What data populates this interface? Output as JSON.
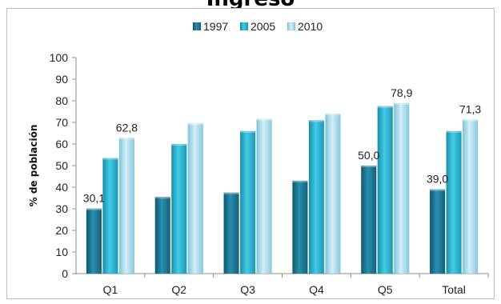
{
  "chart_data": {
    "type": "bar",
    "title": "Ingreso",
    "ylabel": "% de población",
    "xlabel": "",
    "categories": [
      "Q1",
      "Q2",
      "Q3",
      "Q4",
      "Q5",
      "Total"
    ],
    "ylim": [
      0,
      100
    ],
    "yticks": [
      0,
      10,
      20,
      30,
      40,
      50,
      60,
      70,
      80,
      90,
      100
    ],
    "legend_position": "top",
    "grid": false,
    "series": [
      {
        "name": "1997",
        "values": [
          30.1,
          35.5,
          37.5,
          43.0,
          50.0,
          39.0
        ],
        "color": "#1f7a94"
      },
      {
        "name": "2005",
        "values": [
          53.5,
          60.0,
          66.0,
          71.0,
          77.5,
          66.0
        ],
        "color": "#2db4d2"
      },
      {
        "name": "2010",
        "values": [
          62.8,
          69.5,
          71.5,
          74.0,
          78.9,
          71.3
        ],
        "color": "#a6dbeb"
      }
    ],
    "data_labels": [
      {
        "series": "1997",
        "category": "Q1",
        "text": "30,1"
      },
      {
        "series": "2010",
        "category": "Q1",
        "text": "62,8"
      },
      {
        "series": "1997",
        "category": "Q5",
        "text": "50,0"
      },
      {
        "series": "2010",
        "category": "Q5",
        "text": "78,9"
      },
      {
        "series": "1997",
        "category": "Total",
        "text": "39,0"
      },
      {
        "series": "2010",
        "category": "Total",
        "text": "71,3"
      }
    ]
  }
}
